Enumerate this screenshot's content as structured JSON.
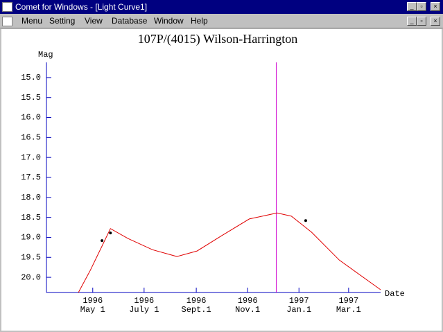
{
  "window": {
    "title": "Comet for Windows - [Light Curve1]",
    "menu": [
      "Menu",
      "Setting",
      "View",
      "Database",
      "Window",
      "Help"
    ]
  },
  "chart_data": {
    "type": "line",
    "title": "107P/(4015) Wilson-Harrington",
    "y_label": "Mag",
    "x_label": "Date",
    "y_inverted": true,
    "ylim": [
      14.62,
      20.38
    ],
    "yticks": [
      {
        "value": 15,
        "label": "15.0"
      },
      {
        "value": 15.5,
        "label": "15.5"
      },
      {
        "value": 16,
        "label": "16.0"
      },
      {
        "value": 16.5,
        "label": "16.5"
      },
      {
        "value": 17,
        "label": "17.0"
      },
      {
        "value": 17.5,
        "label": "17.5"
      },
      {
        "value": 18,
        "label": "18.0"
      },
      {
        "value": 18.5,
        "label": "18.5"
      },
      {
        "value": 19,
        "label": "19.0"
      },
      {
        "value": 19.5,
        "label": "19.5"
      },
      {
        "value": 20,
        "label": "20.0"
      }
    ],
    "xlim": [
      "1996-03-07",
      "1997-04-08"
    ],
    "xticks": [
      {
        "value": "1996-05-01",
        "label": [
          "1996",
          "May 1"
        ]
      },
      {
        "value": "1996-07-01",
        "label": [
          "1996",
          "July 1"
        ]
      },
      {
        "value": "1996-09-01",
        "label": [
          "1996",
          "Sept.1"
        ]
      },
      {
        "value": "1996-11-01",
        "label": [
          "1996",
          "Nov.1"
        ]
      },
      {
        "value": "1997-01-01",
        "label": [
          "1997",
          "Jan.1"
        ]
      },
      {
        "value": "1997-03-01",
        "label": [
          "1997",
          "Mar.1"
        ]
      }
    ],
    "axis_color": "#0000c0",
    "series": [
      {
        "kind": "line",
        "color": "#e00000",
        "x": [
          "1996-04-14",
          "1996-04-28",
          "1996-05-12",
          "1996-05-22",
          "1996-06-12",
          "1996-07-11",
          "1996-08-09",
          "1996-09-02",
          "1996-10-01",
          "1996-11-03",
          "1996-12-06",
          "1996-12-23",
          "1997-01-16",
          "1997-02-18",
          "1997-04-08"
        ],
        "values": [
          20.38,
          19.83,
          19.22,
          18.78,
          19.03,
          19.31,
          19.48,
          19.34,
          18.96,
          18.54,
          18.39,
          18.47,
          18.87,
          19.57,
          20.31
        ]
      },
      {
        "kind": "scatter",
        "color": "#000000",
        "x": [
          "1996-05-12",
          "1996-05-22",
          "1997-01-09"
        ],
        "values": [
          19.08,
          18.89,
          18.58
        ]
      }
    ],
    "marker_date": "1996-12-05",
    "marker_color": "#d000d0"
  }
}
